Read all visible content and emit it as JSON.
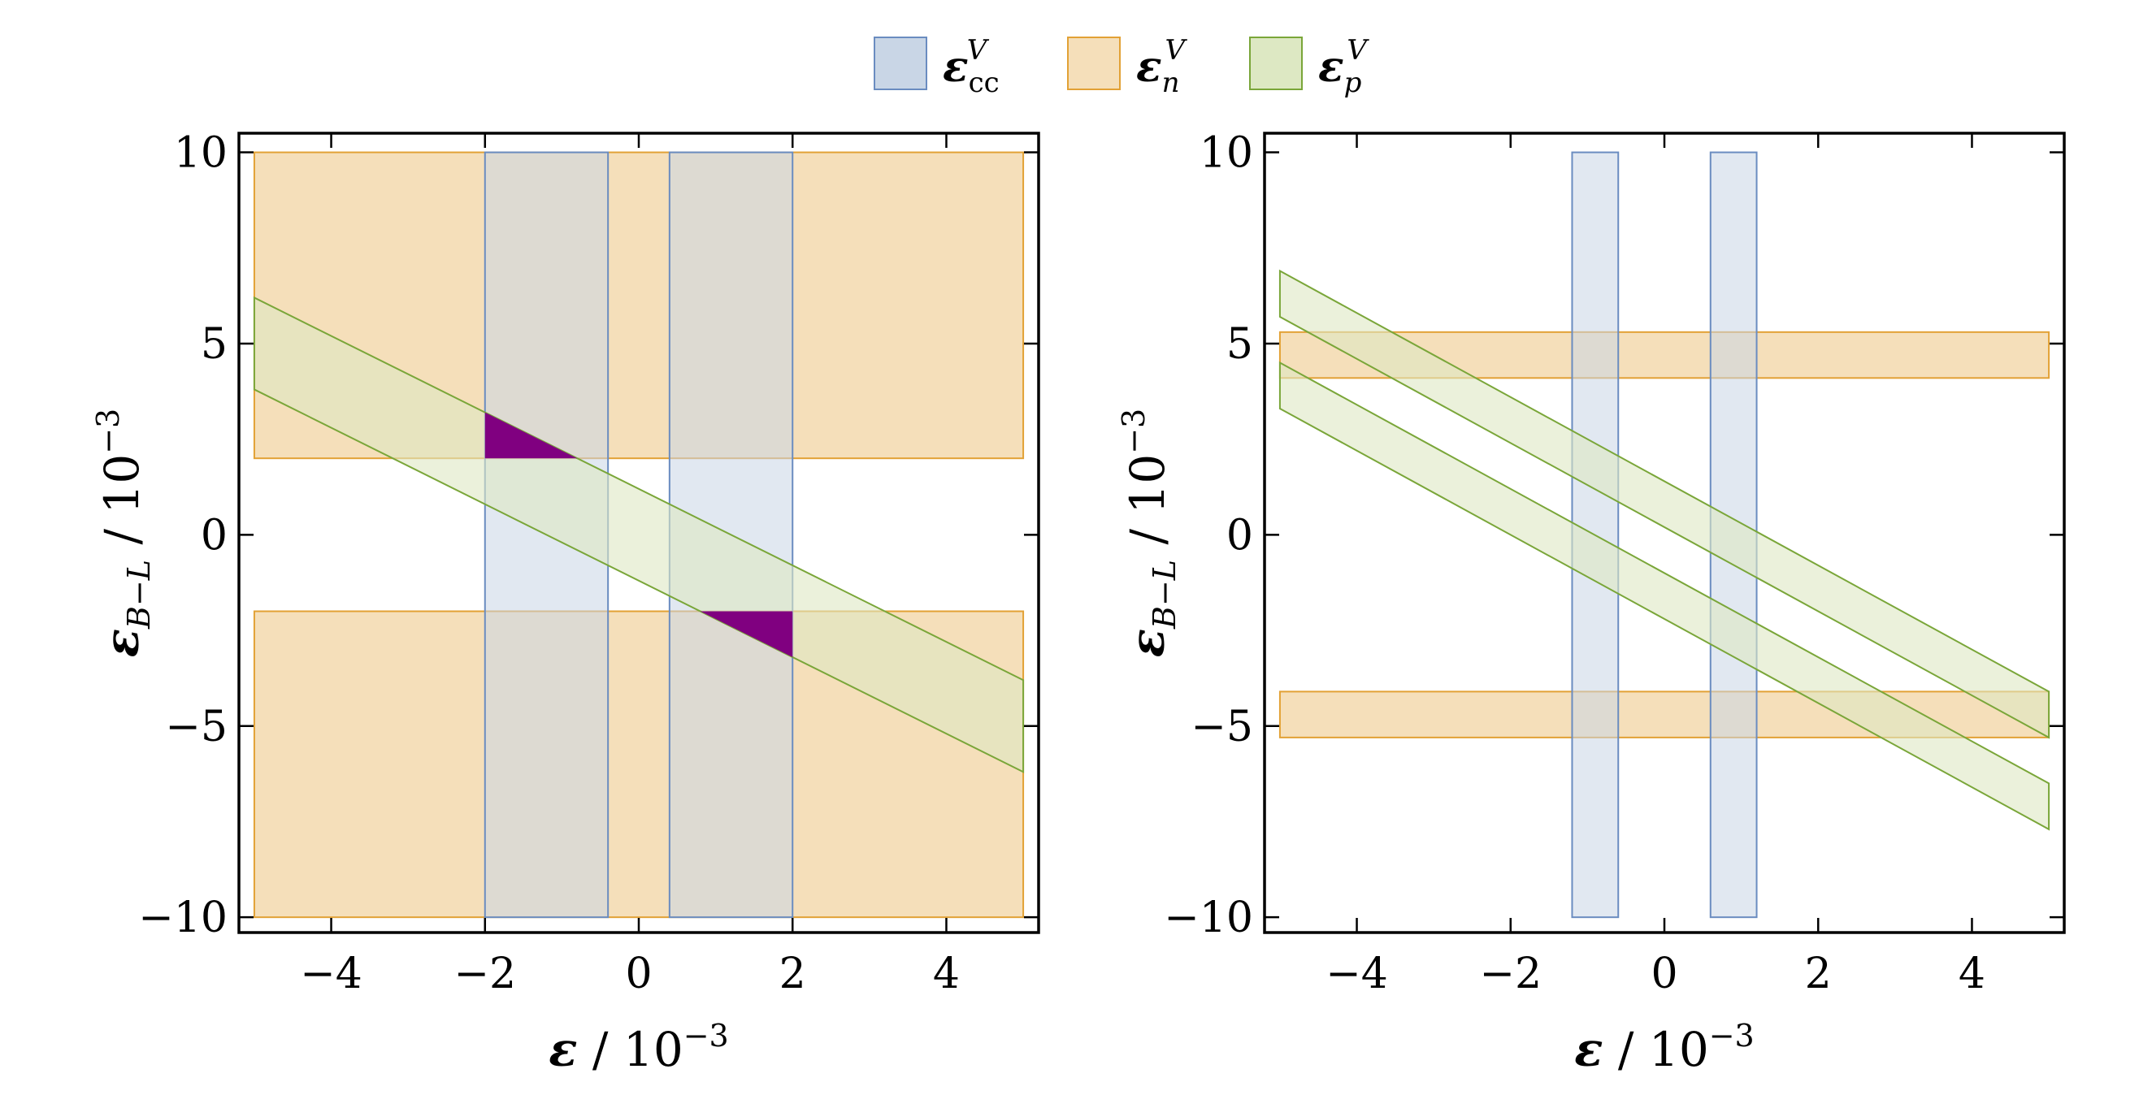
{
  "legend": [
    {
      "symbol": "ε",
      "sub": "cc",
      "sup": "V",
      "color": "#c9d6e6",
      "stroke": "#6a8cc0"
    },
    {
      "symbol": "ε",
      "sub": "n",
      "sup": "V",
      "color": "#f5dfba",
      "stroke": "#e2a135"
    },
    {
      "symbol": "ε",
      "sub": "p",
      "sup": "V",
      "color": "#dde8c3",
      "stroke": "#7aa639"
    }
  ],
  "colors": {
    "cc_fill": "#c9d6e6",
    "cc_stroke": "#6a8cc0",
    "n_fill": "#f5dfba",
    "n_stroke": "#e2a135",
    "p_fill": "#dde8c3",
    "p_stroke": "#7aa639",
    "cc_n_overlap": "#d5c5aa",
    "p_n_overlap": "#d8d19a",
    "highlight": "#800080"
  },
  "chart_data": [
    {
      "type": "area",
      "xlabel": {
        "symbol": "ε",
        "unit": " / 10",
        "exp": "−3"
      },
      "ylabel": {
        "symbol": "ε",
        "sub": "B−L",
        "unit": " / 10",
        "exp": "−3"
      },
      "xlim": [
        -5.2,
        5.2
      ],
      "ylim": [
        -10.4,
        10.5
      ],
      "xticks": [
        {
          "v": -4,
          "label": "−4"
        },
        {
          "v": -2,
          "label": "−2"
        },
        {
          "v": 0,
          "label": "0"
        },
        {
          "v": 2,
          "label": "2"
        },
        {
          "v": 4,
          "label": "4"
        }
      ],
      "yticks": [
        {
          "v": -10,
          "label": "−10"
        },
        {
          "v": -5,
          "label": "−5"
        },
        {
          "v": 0,
          "label": "0"
        },
        {
          "v": 5,
          "label": "5"
        },
        {
          "v": 10,
          "label": "10"
        }
      ],
      "regions": {
        "n": [
          {
            "x": [
              -5,
              5
            ],
            "y": [
              2,
              10
            ]
          },
          {
            "x": [
              -5,
              5
            ],
            "y": [
              -10,
              -2
            ]
          }
        ],
        "cc": [
          {
            "x": [
              -2,
              -0.4
            ],
            "y": [
              -10,
              10
            ]
          },
          {
            "x": [
              0.4,
              2
            ],
            "y": [
              -10,
              10
            ]
          }
        ],
        "p": [
          {
            "x": [
              -5,
              5
            ],
            "slope": -1,
            "upper_intercept": 1.2,
            "lower_intercept": -1.2
          }
        ]
      },
      "highlight": [
        {
          "points": [
            [
              -2,
              3.2
            ],
            [
              -2,
              2
            ],
            [
              -0.8,
              2
            ]
          ]
        },
        {
          "points": [
            [
              2,
              -3.2
            ],
            [
              2,
              -2
            ],
            [
              0.8,
              -2
            ]
          ]
        }
      ]
    },
    {
      "type": "area",
      "xlabel": {
        "symbol": "ε",
        "unit": " / 10",
        "exp": "−3"
      },
      "ylabel": {
        "symbol": "ε",
        "sub": "B−L",
        "unit": " / 10",
        "exp": "−3"
      },
      "xlim": [
        -5.2,
        5.2
      ],
      "ylim": [
        -10.4,
        10.5
      ],
      "xticks": [
        {
          "v": -4,
          "label": "−4"
        },
        {
          "v": -2,
          "label": "−2"
        },
        {
          "v": 0,
          "label": "0"
        },
        {
          "v": 2,
          "label": "2"
        },
        {
          "v": 4,
          "label": "4"
        }
      ],
      "yticks": [
        {
          "v": -10,
          "label": "−10"
        },
        {
          "v": -5,
          "label": "−5"
        },
        {
          "v": 0,
          "label": "0"
        },
        {
          "v": 5,
          "label": "5"
        },
        {
          "v": 10,
          "label": "10"
        }
      ],
      "regions": {
        "n": [
          {
            "x": [
              -5,
              5
            ],
            "y": [
              4.1,
              5.3
            ]
          },
          {
            "x": [
              -5,
              5
            ],
            "y": [
              -5.3,
              -4.1
            ]
          }
        ],
        "cc": [
          {
            "x": [
              -1.2,
              -0.6
            ],
            "y": [
              -10,
              10
            ]
          },
          {
            "x": [
              0.6,
              1.2
            ],
            "y": [
              -10,
              10
            ]
          }
        ],
        "p": [
          {
            "x": [
              -5,
              5
            ],
            "slope": -1.1,
            "upper_intercept": 1.4,
            "lower_intercept": 0.2
          },
          {
            "x": [
              -5,
              5
            ],
            "slope": -1.1,
            "upper_intercept": -1.0,
            "lower_intercept": -2.2
          }
        ]
      },
      "highlight": []
    }
  ]
}
